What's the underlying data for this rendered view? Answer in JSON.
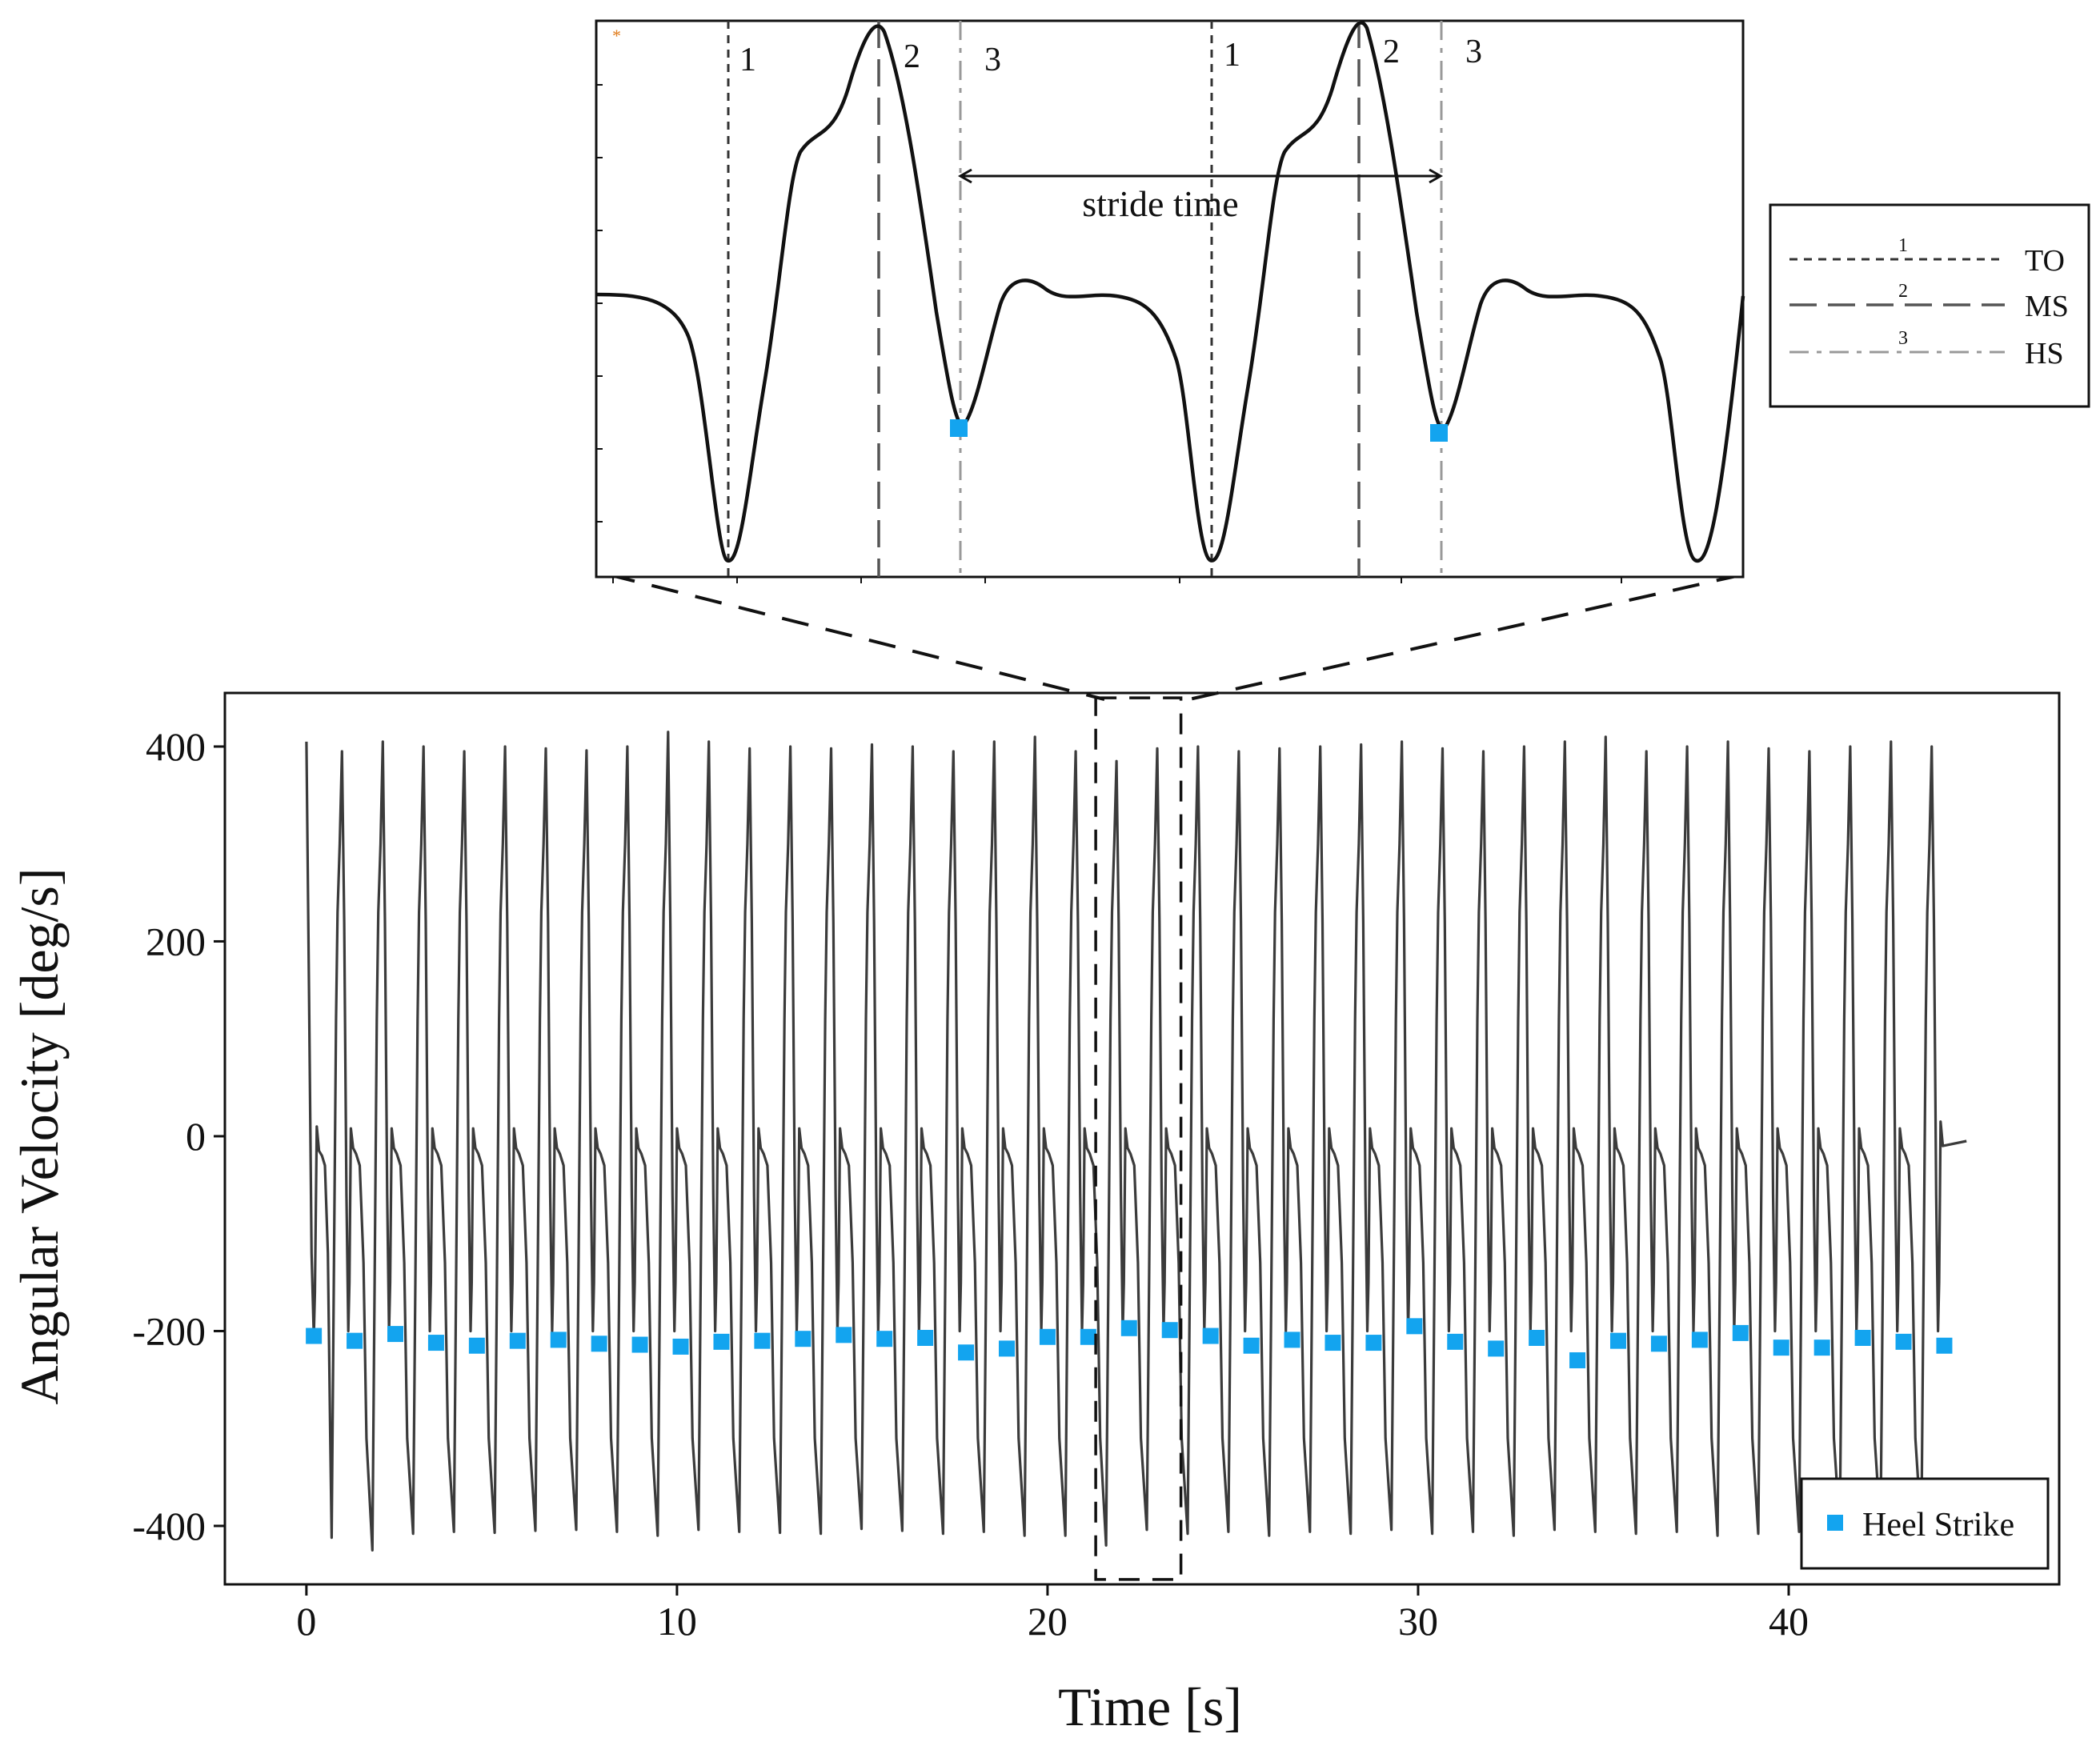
{
  "chart_data": [
    {
      "type": "line",
      "title": "",
      "xlabel": "Time [s]",
      "ylabel": "Angular Velocity [deg/s]",
      "xlim": [
        -2.2,
        47.3
      ],
      "ylim": [
        -460,
        455
      ],
      "xticks": [
        0,
        10,
        20,
        30,
        40
      ],
      "yticks": [
        400,
        200,
        0,
        -200,
        -400
      ],
      "ytick_labels": [
        "400",
        "200",
        "0",
        "-200",
        "-400"
      ],
      "grid": false,
      "legend": {
        "position": "bottom-right",
        "entries": [
          {
            "label": "Heel Strike",
            "marker": "square",
            "color": "#13a4ef"
          }
        ]
      },
      "series": [
        {
          "name": "Heel Strike",
          "kind": "markers",
          "x": [
            0.2,
            1.3,
            2.4,
            3.5,
            4.6,
            5.7,
            6.8,
            7.9,
            9.0,
            10.1,
            11.2,
            12.3,
            13.4,
            14.5,
            15.6,
            16.7,
            17.8,
            18.9,
            20.0,
            21.1,
            22.2,
            23.3,
            24.4,
            25.5,
            26.6,
            27.7,
            28.8,
            29.9,
            31.0,
            32.1,
            33.2,
            34.3,
            35.4,
            36.5,
            37.6,
            38.7,
            39.8,
            40.9,
            42.0,
            43.1,
            44.2
          ],
          "y": [
            -205,
            -210,
            -203,
            -212,
            -215,
            -210,
            -209,
            -213,
            -214,
            -216,
            -211,
            -210,
            -208,
            -204,
            -208,
            -207,
            -222,
            -218,
            -206,
            -206,
            -197,
            -199,
            -205,
            -215,
            -209,
            -212,
            -212,
            -195,
            -211,
            -218,
            -207,
            -230,
            -210,
            -213,
            -209,
            -202,
            -217,
            -217,
            -207,
            -211,
            -215
          ]
        }
      ],
      "signal": {
        "color": "#3b3b3b",
        "start_time": 0,
        "end_time": 44.8,
        "start_value": 405,
        "end_value": -5,
        "stride_period_s": 1.1,
        "peaks": [
          null,
          395,
          405,
          400,
          395,
          400,
          398,
          396,
          400,
          415,
          405,
          398,
          400,
          398,
          402,
          400,
          395,
          405,
          410,
          395,
          385,
          398,
          400,
          395,
          398,
          400,
          402,
          405,
          398,
          395,
          400,
          405,
          410,
          395,
          400,
          405,
          398,
          395,
          400,
          405,
          400
        ],
        "troughs": [
          -412,
          -425,
          -408,
          -406,
          -407,
          -405,
          -404,
          -406,
          -410,
          -404,
          -406,
          -407,
          -408,
          -403,
          -405,
          -408,
          -406,
          -410,
          -410,
          -420,
          -404,
          -408,
          -406,
          -410,
          -406,
          -408,
          -404,
          -408,
          -406,
          -410,
          -404,
          -406,
          -408,
          -406,
          -410,
          -408,
          -406,
          -404,
          -404,
          -406
        ]
      },
      "zoom_window": {
        "x": [
          21.3,
          23.6
        ],
        "y": [
          -455,
          450
        ]
      }
    },
    {
      "type": "line",
      "title": "",
      "note_marker": "*",
      "xlabel": "",
      "ylabel": "",
      "event_labels": [
        {
          "text": "1",
          "event": "TO",
          "cycle": 1
        },
        {
          "text": "2",
          "event": "MS",
          "cycle": 1
        },
        {
          "text": "3",
          "event": "HS",
          "cycle": 1
        },
        {
          "text": "1",
          "event": "TO",
          "cycle": 2
        },
        {
          "text": "2",
          "event": "MS",
          "cycle": 2
        },
        {
          "text": "3",
          "event": "HS",
          "cycle": 2
        }
      ],
      "annotation": "stride time",
      "legend": {
        "position": "right",
        "entries": [
          {
            "label": "TO",
            "number": "1",
            "dash": "short",
            "color": "#333333"
          },
          {
            "label": "MS",
            "number": "2",
            "dash": "long",
            "color": "#555555"
          },
          {
            "label": "HS",
            "number": "3",
            "dash": "dashdot",
            "color": "#999999"
          }
        ]
      },
      "heel_strike_color": "#13a4ef"
    }
  ]
}
